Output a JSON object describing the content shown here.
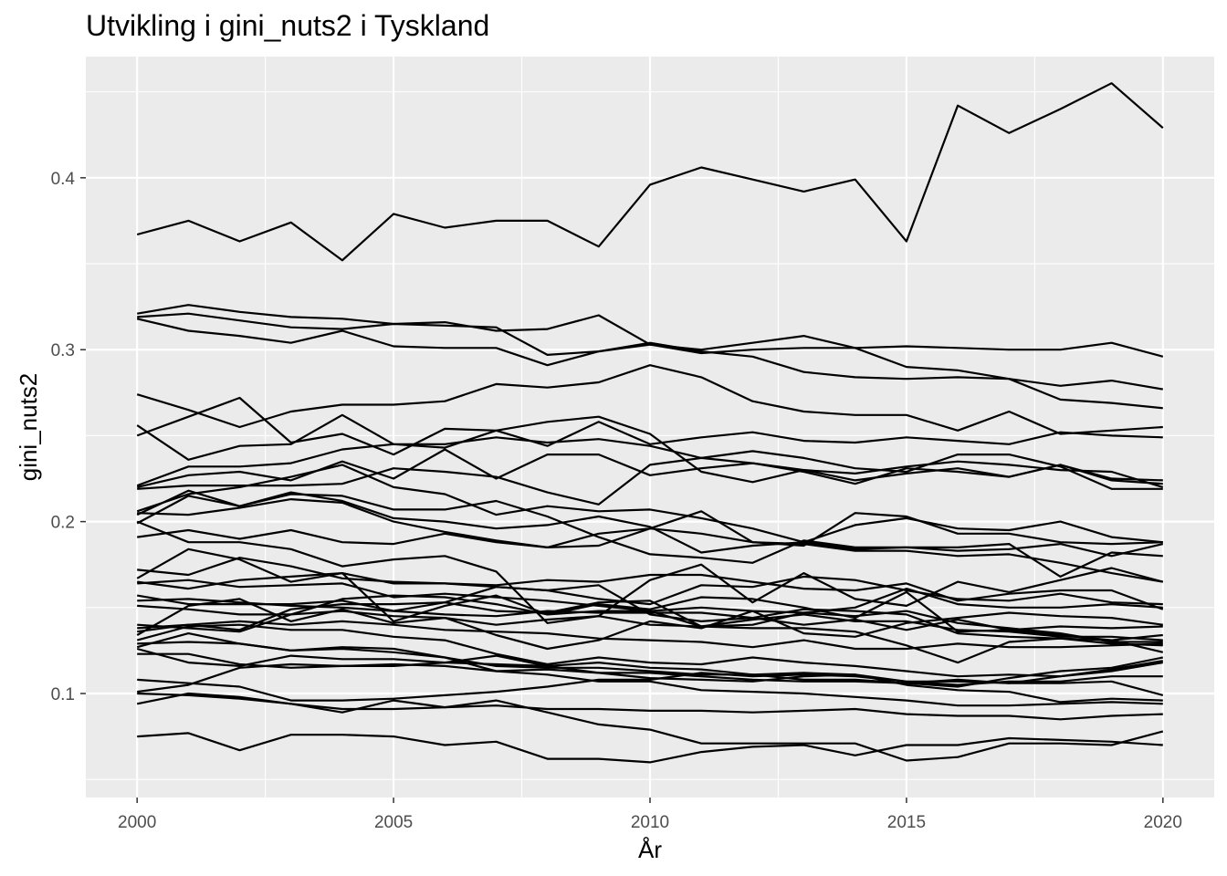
{
  "chart_data": {
    "type": "line",
    "title": "Utvikling i gini_nuts2 i Tyskland",
    "xlabel": "År",
    "ylabel": "gini_nuts2",
    "xlim": [
      1999,
      2021
    ],
    "ylim": [
      0.0395,
      0.4705
    ],
    "x_ticks": [
      2000,
      2005,
      2010,
      2015,
      2020
    ],
    "x_tick_labels": [
      "2000",
      "2005",
      "2010",
      "2015",
      "2020"
    ],
    "y_ticks": [
      0.1,
      0.2,
      0.3,
      0.4
    ],
    "y_tick_labels": [
      "0.1",
      "0.2",
      "0.3",
      "0.4"
    ],
    "grid": true,
    "legend": "none",
    "colors": {
      "panel": "#ebebeb",
      "grid": "#ffffff",
      "line": "#000000",
      "tick_text": "#4d4d4d"
    },
    "x": [
      2000,
      2001,
      2002,
      2003,
      2004,
      2005,
      2006,
      2007,
      2008,
      2009,
      2010,
      2011,
      2012,
      2013,
      2014,
      2015,
      2016,
      2017,
      2018,
      2019,
      2020
    ],
    "series": [
      {
        "values": [
          0.367,
          0.375,
          0.363,
          0.374,
          0.352,
          0.379,
          0.371,
          0.375,
          0.375,
          0.36,
          0.396,
          0.406,
          0.399,
          0.392,
          0.399,
          0.363,
          0.442,
          0.426,
          0.44,
          0.455,
          0.429
        ]
      },
      {
        "values": [
          0.321,
          0.326,
          0.322,
          0.319,
          0.318,
          0.315,
          0.316,
          0.311,
          0.312,
          0.32,
          0.303,
          0.3,
          0.304,
          0.308,
          0.301,
          0.29,
          0.288,
          0.283,
          0.271,
          0.269,
          0.266
        ]
      },
      {
        "values": [
          0.319,
          0.321,
          0.317,
          0.313,
          0.312,
          0.315,
          0.314,
          0.313,
          0.297,
          0.299,
          0.303,
          0.298,
          0.3,
          0.301,
          0.301,
          0.302,
          0.301,
          0.3,
          0.3,
          0.304,
          0.296
        ]
      },
      {
        "values": [
          0.318,
          0.311,
          0.308,
          0.304,
          0.311,
          0.302,
          0.301,
          0.301,
          0.291,
          0.299,
          0.304,
          0.299,
          0.296,
          0.287,
          0.284,
          0.283,
          0.284,
          0.283,
          0.279,
          0.282,
          0.277
        ]
      },
      {
        "values": [
          0.274,
          0.265,
          0.255,
          0.264,
          0.268,
          0.268,
          0.27,
          0.28,
          0.278,
          0.281,
          0.291,
          0.284,
          0.27,
          0.264,
          0.262,
          0.262,
          0.253,
          0.264,
          0.251,
          0.253,
          0.255
        ]
      },
      {
        "values": [
          0.256,
          0.236,
          0.244,
          0.245,
          0.262,
          0.245,
          0.243,
          0.253,
          0.258,
          0.261,
          0.251,
          0.229,
          0.223,
          0.23,
          0.228,
          0.232,
          0.235,
          0.233,
          0.23,
          0.229,
          0.22
        ]
      },
      {
        "values": [
          0.25,
          0.261,
          0.272,
          0.246,
          0.251,
          0.239,
          0.254,
          0.253,
          0.244,
          0.258,
          0.245,
          0.249,
          0.252,
          0.247,
          0.246,
          0.249,
          0.247,
          0.245,
          0.252,
          0.25,
          0.249
        ]
      },
      {
        "values": [
          0.221,
          0.232,
          0.232,
          0.234,
          0.242,
          0.245,
          0.245,
          0.249,
          0.246,
          0.248,
          0.244,
          0.237,
          0.241,
          0.237,
          0.231,
          0.229,
          0.239,
          0.239,
          0.232,
          0.219,
          0.219
        ]
      },
      {
        "values": [
          0.22,
          0.227,
          0.229,
          0.224,
          0.235,
          0.225,
          0.242,
          0.225,
          0.239,
          0.239,
          0.227,
          0.231,
          0.234,
          0.229,
          0.222,
          0.231,
          0.229,
          0.226,
          0.233,
          0.225,
          0.224
        ]
      },
      {
        "values": [
          0.219,
          0.221,
          0.221,
          0.221,
          0.222,
          0.231,
          0.229,
          0.226,
          0.217,
          0.21,
          0.233,
          0.237,
          0.234,
          0.23,
          0.224,
          0.228,
          0.231,
          0.226,
          0.233,
          0.224,
          0.222
        ]
      },
      {
        "values": [
          0.206,
          0.216,
          0.22,
          0.226,
          0.233,
          0.22,
          0.216,
          0.204,
          0.209,
          0.206,
          0.207,
          0.202,
          0.196,
          0.188,
          0.198,
          0.202,
          0.196,
          0.195,
          0.2,
          0.191,
          0.188
        ]
      },
      {
        "values": [
          0.205,
          0.204,
          0.208,
          0.213,
          0.211,
          0.2,
          0.194,
          0.189,
          0.185,
          0.186,
          0.196,
          0.206,
          0.188,
          0.186,
          0.205,
          0.203,
          0.193,
          0.193,
          0.188,
          0.187,
          0.188
        ]
      },
      {
        "values": [
          0.204,
          0.218,
          0.209,
          0.216,
          0.215,
          0.207,
          0.207,
          0.212,
          0.203,
          0.191,
          0.181,
          0.179,
          0.176,
          0.189,
          0.185,
          0.185,
          0.185,
          0.187,
          0.168,
          0.182,
          0.18
        ]
      },
      {
        "values": [
          0.2,
          0.188,
          0.188,
          0.184,
          0.174,
          0.178,
          0.18,
          0.171,
          0.141,
          0.145,
          0.166,
          0.175,
          0.153,
          0.17,
          0.155,
          0.151,
          0.165,
          0.159,
          0.166,
          0.173,
          0.165
        ]
      },
      {
        "values": [
          0.199,
          0.215,
          0.209,
          0.217,
          0.212,
          0.202,
          0.2,
          0.196,
          0.198,
          0.203,
          0.197,
          0.182,
          0.186,
          0.188,
          0.184,
          0.185,
          0.183,
          0.184,
          0.187,
          0.18,
          0.187
        ]
      },
      {
        "values": [
          0.191,
          0.195,
          0.19,
          0.195,
          0.188,
          0.187,
          0.193,
          0.188,
          0.185,
          0.193,
          0.196,
          0.193,
          0.188,
          0.187,
          0.183,
          0.183,
          0.18,
          0.181,
          0.176,
          0.17,
          0.165
        ]
      },
      {
        "values": [
          0.172,
          0.169,
          0.179,
          0.174,
          0.167,
          0.165,
          0.164,
          0.162,
          0.16,
          0.155,
          0.152,
          0.163,
          0.162,
          0.168,
          0.166,
          0.16,
          0.155,
          0.154,
          0.158,
          0.153,
          0.152
        ]
      },
      {
        "values": [
          0.167,
          0.184,
          0.178,
          0.165,
          0.17,
          0.164,
          0.164,
          0.163,
          0.166,
          0.165,
          0.169,
          0.169,
          0.165,
          0.161,
          0.16,
          0.164,
          0.154,
          0.158,
          0.16,
          0.16,
          0.149
        ]
      },
      {
        "values": [
          0.165,
          0.161,
          0.166,
          0.168,
          0.17,
          0.142,
          0.151,
          0.157,
          0.146,
          0.152,
          0.149,
          0.156,
          0.155,
          0.15,
          0.144,
          0.159,
          0.136,
          0.137,
          0.134,
          0.131,
          0.124
        ]
      },
      {
        "values": [
          0.164,
          0.166,
          0.162,
          0.163,
          0.164,
          0.156,
          0.158,
          0.156,
          0.154,
          0.151,
          0.148,
          0.139,
          0.143,
          0.146,
          0.142,
          0.142,
          0.137,
          0.136,
          0.133,
          0.133,
          0.131
        ]
      },
      {
        "values": [
          0.157,
          0.152,
          0.152,
          0.152,
          0.154,
          0.148,
          0.146,
          0.145,
          0.148,
          0.147,
          0.147,
          0.147,
          0.144,
          0.149,
          0.148,
          0.146,
          0.135,
          0.133,
          0.132,
          0.131,
          0.134
        ]
      },
      {
        "values": [
          0.154,
          0.155,
          0.153,
          0.151,
          0.15,
          0.148,
          0.153,
          0.162,
          0.16,
          0.163,
          0.146,
          0.142,
          0.144,
          0.14,
          0.143,
          0.137,
          0.143,
          0.137,
          0.139,
          0.138,
          0.139
        ]
      },
      {
        "values": [
          0.151,
          0.149,
          0.146,
          0.146,
          0.148,
          0.145,
          0.144,
          0.14,
          0.143,
          0.145,
          0.14,
          0.139,
          0.138,
          0.138,
          0.136,
          0.128,
          0.118,
          0.13,
          0.132,
          0.129,
          0.128
        ]
      },
      {
        "values": [
          0.14,
          0.138,
          0.136,
          0.146,
          0.155,
          0.157,
          0.156,
          0.152,
          0.146,
          0.148,
          0.148,
          0.15,
          0.148,
          0.147,
          0.145,
          0.148,
          0.141,
          0.138,
          0.135,
          0.13,
          0.13
        ]
      },
      {
        "values": [
          0.138,
          0.14,
          0.137,
          0.149,
          0.152,
          0.152,
          0.153,
          0.148,
          0.147,
          0.153,
          0.154,
          0.139,
          0.14,
          0.147,
          0.15,
          0.161,
          0.152,
          0.15,
          0.15,
          0.152,
          0.15
        ]
      },
      {
        "values": [
          0.136,
          0.14,
          0.142,
          0.14,
          0.142,
          0.14,
          0.137,
          0.136,
          0.135,
          0.132,
          0.131,
          0.13,
          0.127,
          0.131,
          0.126,
          0.126,
          0.129,
          0.127,
          0.127,
          0.128,
          0.129
        ]
      },
      {
        "values": [
          0.134,
          0.151,
          0.155,
          0.142,
          0.149,
          0.141,
          0.144,
          0.134,
          0.126,
          0.131,
          0.142,
          0.138,
          0.148,
          0.135,
          0.133,
          0.141,
          0.144,
          0.147,
          0.145,
          0.144,
          0.14
        ]
      },
      {
        "values": [
          0.131,
          0.139,
          0.14,
          0.137,
          0.137,
          0.133,
          0.131,
          0.123,
          0.117,
          0.121,
          0.118,
          0.117,
          0.121,
          0.118,
          0.116,
          0.113,
          0.11,
          0.111,
          0.11,
          0.113,
          0.118
        ]
      },
      {
        "values": [
          0.129,
          0.13,
          0.129,
          0.125,
          0.126,
          0.124,
          0.121,
          0.116,
          0.115,
          0.115,
          0.113,
          0.111,
          0.111,
          0.112,
          0.111,
          0.107,
          0.107,
          0.106,
          0.11,
          0.114,
          0.119
        ]
      },
      {
        "values": [
          0.127,
          0.135,
          0.129,
          0.125,
          0.127,
          0.126,
          0.121,
          0.113,
          0.114,
          0.112,
          0.112,
          0.11,
          0.108,
          0.107,
          0.107,
          0.106,
          0.104,
          0.109,
          0.113,
          0.115,
          0.121
        ]
      },
      {
        "values": [
          0.126,
          0.118,
          0.116,
          0.122,
          0.12,
          0.12,
          0.118,
          0.117,
          0.116,
          0.112,
          0.109,
          0.108,
          0.107,
          0.11,
          0.111,
          0.105,
          0.102,
          0.101,
          0.095,
          0.097,
          0.096
        ]
      },
      {
        "values": [
          0.123,
          0.123,
          0.117,
          0.115,
          0.116,
          0.116,
          0.118,
          0.122,
          0.116,
          0.118,
          0.115,
          0.114,
          0.111,
          0.108,
          0.108,
          0.106,
          0.108,
          0.106,
          0.106,
          0.107,
          0.099
        ]
      },
      {
        "values": [
          0.108,
          0.106,
          0.104,
          0.096,
          0.096,
          0.097,
          0.099,
          0.101,
          0.104,
          0.108,
          0.108,
          0.112,
          0.11,
          0.111,
          0.11,
          0.107,
          0.105,
          0.107,
          0.107,
          0.11,
          0.11
        ]
      },
      {
        "values": [
          0.101,
          0.105,
          0.115,
          0.117,
          0.116,
          0.117,
          0.116,
          0.113,
          0.111,
          0.107,
          0.107,
          0.102,
          0.101,
          0.1,
          0.098,
          0.096,
          0.093,
          0.093,
          0.094,
          0.095,
          0.094
        ]
      },
      {
        "values": [
          0.1,
          0.099,
          0.097,
          0.094,
          0.091,
          0.091,
          0.092,
          0.093,
          0.091,
          0.091,
          0.09,
          0.09,
          0.089,
          0.09,
          0.091,
          0.088,
          0.087,
          0.087,
          0.085,
          0.087,
          0.088
        ]
      },
      {
        "values": [
          0.094,
          0.1,
          0.098,
          0.094,
          0.089,
          0.096,
          0.092,
          0.096,
          0.089,
          0.082,
          0.079,
          0.071,
          0.071,
          0.071,
          0.071,
          0.061,
          0.063,
          0.071,
          0.071,
          0.07,
          0.078
        ]
      },
      {
        "values": [
          0.075,
          0.077,
          0.067,
          0.076,
          0.076,
          0.075,
          0.07,
          0.072,
          0.062,
          0.062,
          0.06,
          0.066,
          0.069,
          0.07,
          0.064,
          0.07,
          0.07,
          0.074,
          0.073,
          0.072,
          0.07
        ]
      }
    ]
  }
}
